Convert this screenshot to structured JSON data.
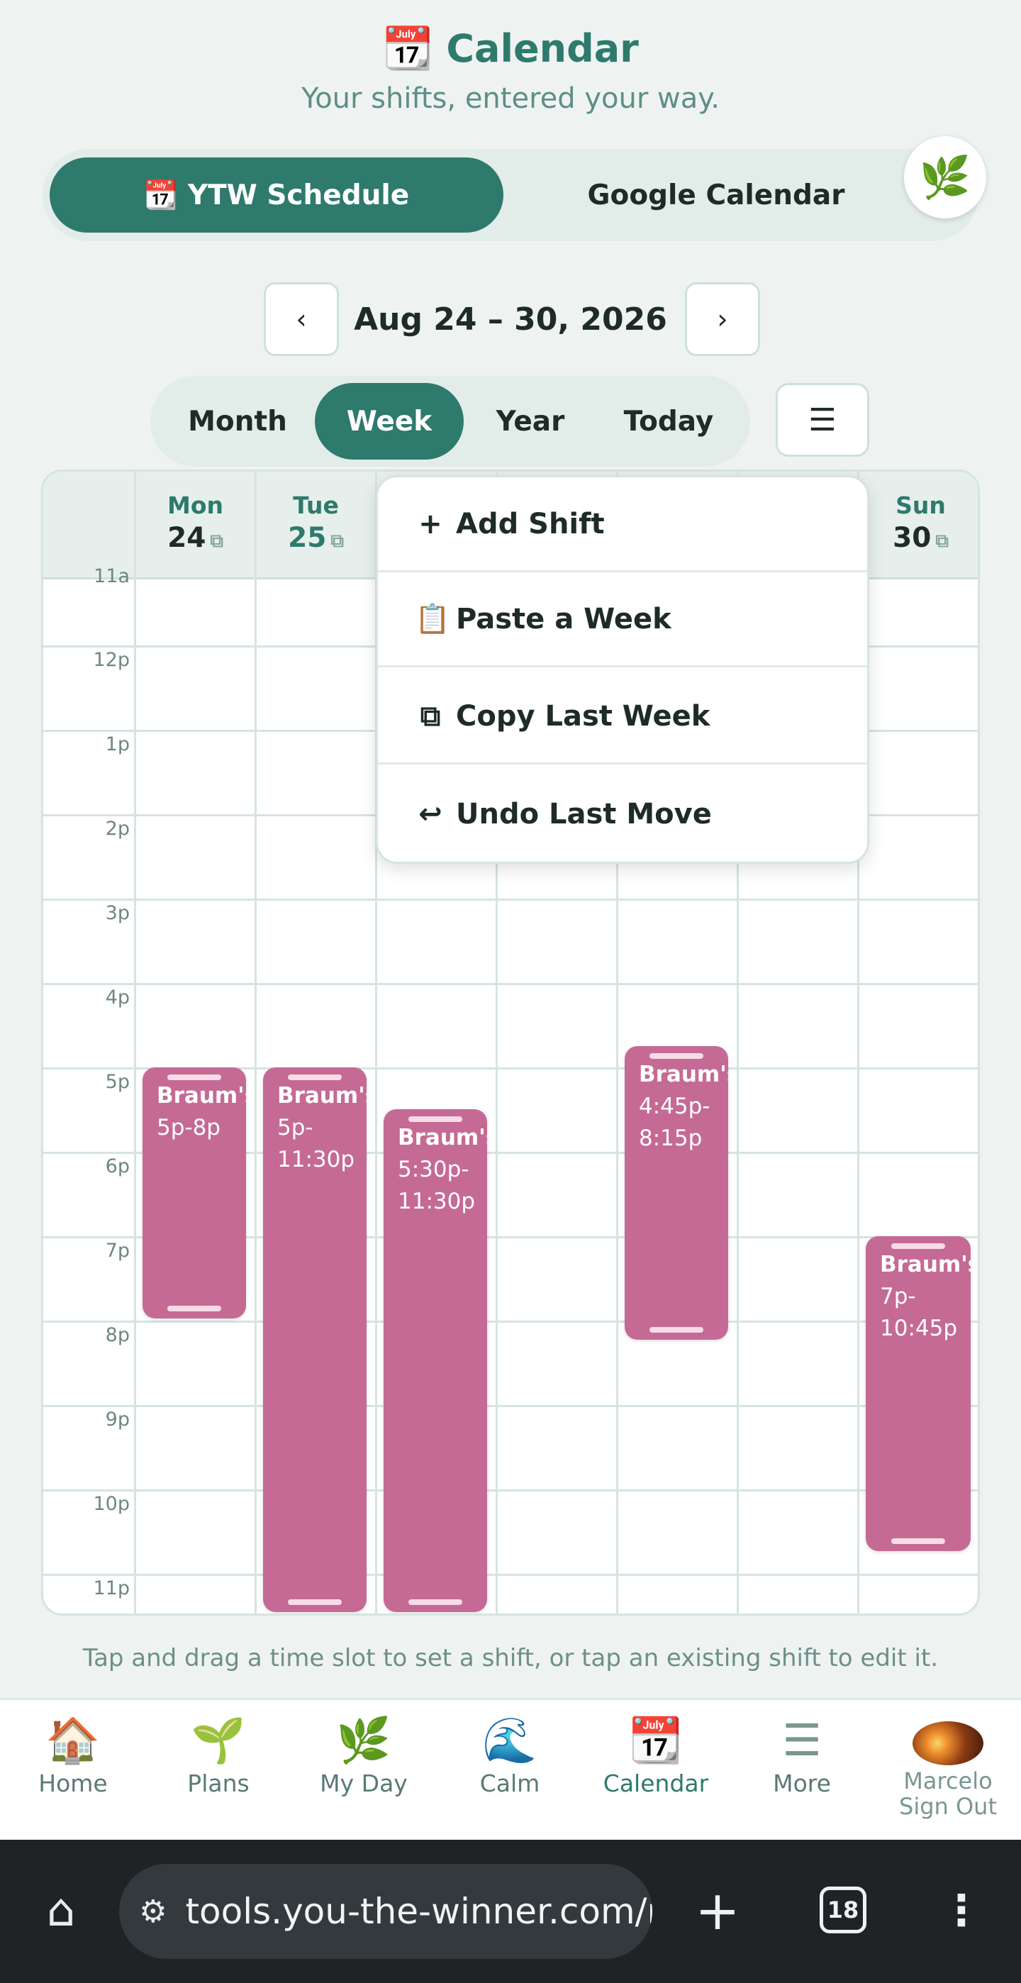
{
  "header": {
    "icon": "calendar-emoji",
    "emoji": "📆",
    "title": "Calendar",
    "subtitle": "Your shifts, entered your way."
  },
  "source_toggle": {
    "ytw_label": "📆 YTW Schedule",
    "google_label": "Google Calendar",
    "leaf_emoji": "🌿"
  },
  "range": {
    "prev": "‹",
    "label": "Aug 24 – 30, 2026",
    "next": "›"
  },
  "views": {
    "month": "Month",
    "week": "Week",
    "year": "Year",
    "today": "Today",
    "active": "Week",
    "menu": "☰"
  },
  "days": [
    {
      "name": "Mon",
      "date": "24"
    },
    {
      "name": "Tue",
      "date": "25"
    },
    {
      "name": "Sun",
      "date": "30"
    }
  ],
  "hours": [
    "11a",
    "12p",
    "1p",
    "2p",
    "3p",
    "4p",
    "5p",
    "6p",
    "7p",
    "8p",
    "9p",
    "10p",
    "11p"
  ],
  "shifts": [
    {
      "day": "Mon",
      "name": "Braum's",
      "time1": "5p-8p",
      "time2": ""
    },
    {
      "day": "Tue",
      "name": "Braum's",
      "time1": "5p-",
      "time2": "11:30p"
    },
    {
      "day": "Wed",
      "name": "Braum's",
      "time1": "5:30p-",
      "time2": "11:30p"
    },
    {
      "day": "Fri",
      "name": "Braum's",
      "time1": "4:45p-",
      "time2": "8:15p"
    },
    {
      "day": "Sun",
      "name": "Braum's",
      "time1": "7p-",
      "time2": "10:45p"
    }
  ],
  "menu_items": [
    {
      "icon": "+",
      "label": "Add Shift"
    },
    {
      "icon": "📋",
      "label": "Paste a Week"
    },
    {
      "icon": "⧉",
      "label": "Copy Last Week"
    },
    {
      "icon": "↩",
      "label": "Undo Last Move"
    }
  ],
  "hint": "Tap and drag a time slot to set a shift, or tap an existing shift to edit it.",
  "tabbar": [
    {
      "emoji": "🏠",
      "label": "Home"
    },
    {
      "emoji": "🌱",
      "label": "Plans"
    },
    {
      "emoji": "🌿",
      "label": "My Day"
    },
    {
      "emoji": "🌊",
      "label": "Calm"
    },
    {
      "emoji": "📆",
      "label": "Calendar"
    },
    {
      "emoji": "☰",
      "label": "More"
    },
    {
      "user": "Marcelo",
      "action": "Sign Out"
    }
  ],
  "browser": {
    "url": "tools.you-the-winner.com/n",
    "tab_count": "18"
  },
  "colors": {
    "accent": "#2e7a6c",
    "shift": "#c56a94",
    "background": "#eef3f1"
  }
}
